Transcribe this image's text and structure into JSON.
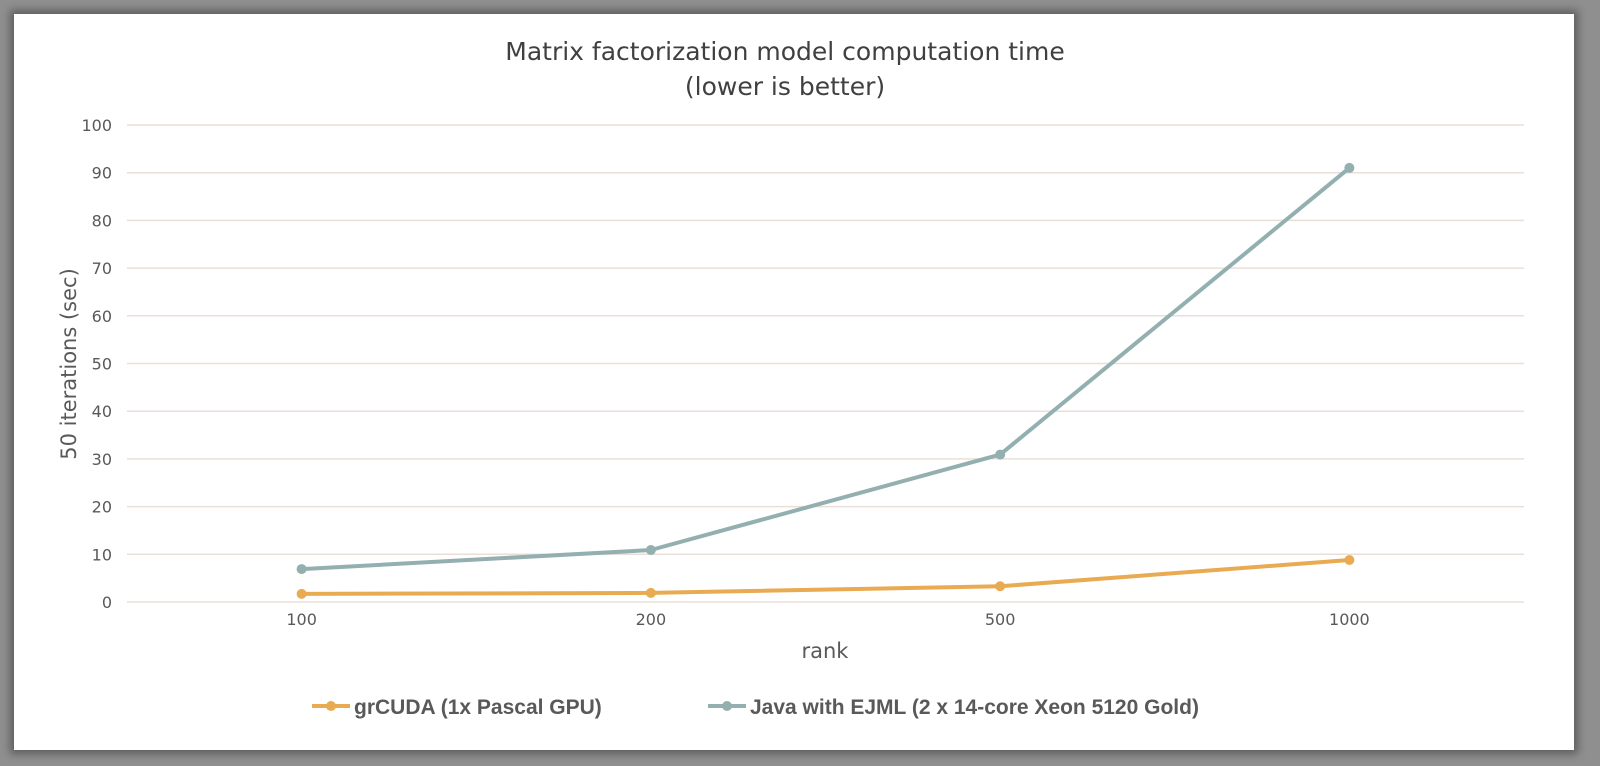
{
  "chart_data": {
    "type": "line",
    "title": "Matrix factorization model computation time",
    "subtitle": "(lower is better)",
    "xlabel": "rank",
    "ylabel": "50 iterations (sec)",
    "categories": [
      "100",
      "200",
      "500",
      "1000"
    ],
    "ylim": [
      0,
      100
    ],
    "yticks": [
      0,
      10,
      20,
      30,
      40,
      50,
      60,
      70,
      80,
      90,
      100
    ],
    "grid": true,
    "legend_position": "bottom",
    "series": [
      {
        "name": "grCUDA (1x Pascal GPU)",
        "color": "#e8ab52",
        "values": [
          1.7,
          1.9,
          3.3,
          8.8
        ]
      },
      {
        "name": "Java with EJML (2 x 14-core Xeon 5120 Gold)",
        "color": "#93afb0",
        "values": [
          6.9,
          10.9,
          30.9,
          91.0
        ]
      }
    ]
  }
}
